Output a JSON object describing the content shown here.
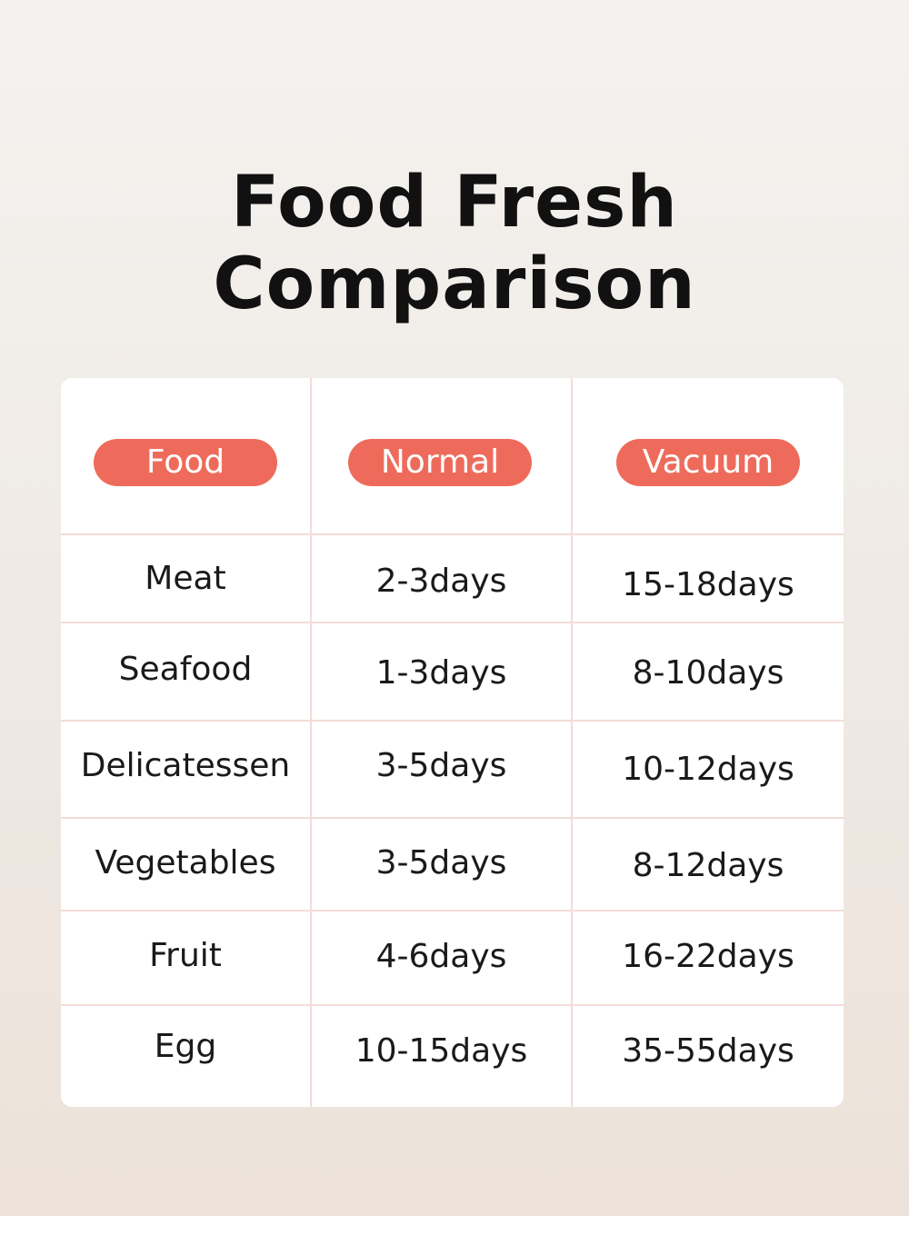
{
  "title": "Food Fresh Comparison",
  "colors": {
    "accent": "#ee6b5b",
    "divider": "#f3dcd8"
  },
  "table": {
    "headers": [
      "Food",
      "Normal",
      "Vacuum"
    ],
    "rows": [
      {
        "food": "Meat",
        "normal": "2-3days",
        "vacuum": "15-18days"
      },
      {
        "food": "Seafood",
        "normal": "1-3days",
        "vacuum": "8-10days"
      },
      {
        "food": "Delicatessen",
        "normal": "3-5days",
        "vacuum": "10-12days"
      },
      {
        "food": "Vegetables",
        "normal": "3-5days",
        "vacuum": "8-12days"
      },
      {
        "food": "Fruit",
        "normal": "4-6days",
        "vacuum": "16-22days"
      },
      {
        "food": "Egg",
        "normal": "10-15days",
        "vacuum": "35-55days"
      }
    ]
  }
}
